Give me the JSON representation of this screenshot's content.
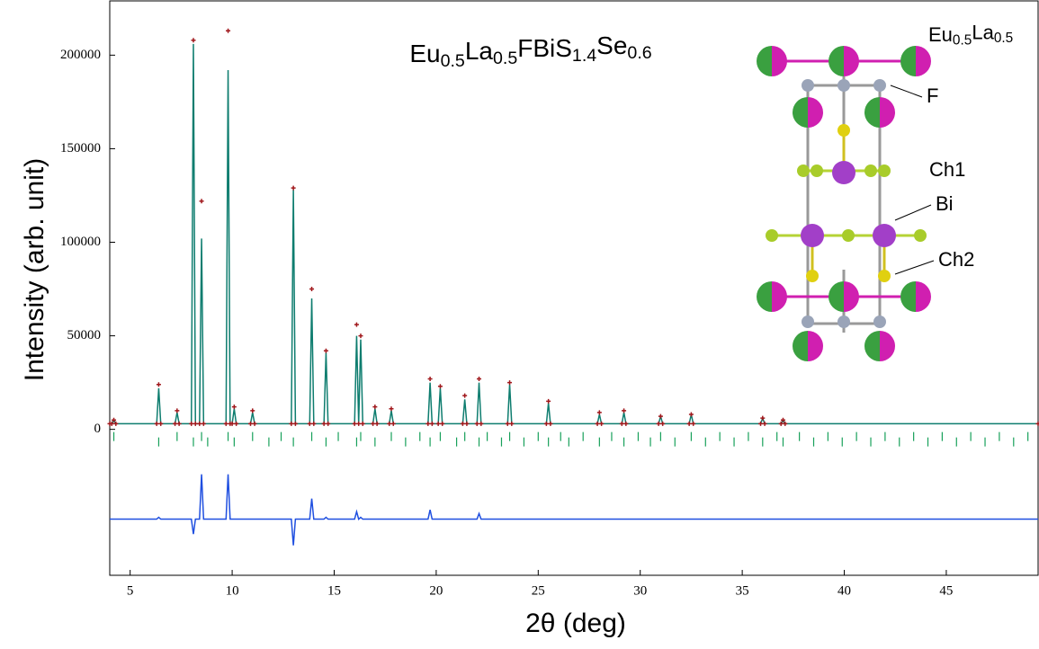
{
  "chart_data": {
    "type": "line",
    "title": "Eu0.5La0.5FBiS1.4Se0.6",
    "x_label": "2θ (deg)",
    "y_label": "Intensity (arb. unit)",
    "xlim": [
      4,
      49.5
    ],
    "ylim": [
      -78000,
      229000
    ],
    "xticks": [
      5,
      10,
      15,
      20,
      25,
      30,
      35,
      40,
      45
    ],
    "yticks": [
      0,
      50000,
      100000,
      150000,
      200000
    ],
    "x": [
      4,
      4.1,
      4.2,
      4.3,
      6.3,
      6.4,
      6.5,
      7.2,
      7.3,
      7.4,
      8.0,
      8.1,
      8.2,
      8.4,
      8.5,
      8.6,
      9.7,
      9.8,
      9.9,
      10.0,
      10.1,
      10.2,
      10.9,
      11.0,
      11.1,
      12.9,
      13.0,
      13.1,
      13.8,
      13.9,
      14.0,
      14.5,
      14.6,
      14.7,
      16.0,
      16.1,
      16.2,
      16.3,
      16.4,
      16.9,
      17.0,
      17.1,
      17.7,
      17.8,
      17.9,
      19.6,
      19.7,
      19.8,
      20.1,
      20.2,
      20.3,
      21.3,
      21.4,
      21.5,
      22.0,
      22.1,
      22.2,
      23.5,
      23.6,
      23.7,
      25.4,
      25.5,
      25.6,
      27.9,
      28.0,
      28.1,
      29.1,
      29.2,
      29.3,
      30.9,
      31.0,
      31.1,
      32.4,
      32.5,
      32.6,
      35.9,
      36.0,
      36.1,
      36.9,
      37.0,
      37.1,
      49.5
    ],
    "series": [
      {
        "style": "line",
        "color": "#0e7d6f",
        "values": [
          3000,
          3000,
          5000,
          3000,
          3000,
          22000,
          3000,
          3000,
          9000,
          3000,
          3000,
          206000,
          3000,
          3000,
          102000,
          3000,
          3000,
          192000,
          3000,
          3000,
          11000,
          3000,
          3000,
          9000,
          3000,
          3000,
          128000,
          3000,
          3000,
          70000,
          3000,
          3000,
          41000,
          3000,
          3000,
          50000,
          3000,
          48000,
          3000,
          3000,
          11000,
          3000,
          3000,
          10000,
          3000,
          3000,
          25000,
          3000,
          3000,
          22000,
          3000,
          3000,
          16000,
          3000,
          3000,
          25000,
          3000,
          3000,
          24000,
          3000,
          3000,
          14000,
          3000,
          3000,
          8000,
          3000,
          3000,
          9000,
          3000,
          3000,
          7000,
          3000,
          3000,
          8000,
          3000,
          3000,
          6000,
          3000,
          3000,
          5000,
          3000,
          3000
        ]
      },
      {
        "style": "scatter",
        "color": "#a0171b",
        "values": [
          3000,
          3000,
          5000,
          3000,
          3000,
          24000,
          3000,
          3000,
          10000,
          3000,
          3000,
          208000,
          3000,
          3000,
          122000,
          3000,
          3000,
          213000,
          3000,
          3000,
          12000,
          3000,
          3000,
          10000,
          3000,
          3000,
          129000,
          3000,
          3000,
          75000,
          3000,
          3000,
          42000,
          3000,
          3000,
          56000,
          3000,
          50000,
          3000,
          3000,
          12000,
          3000,
          3000,
          11000,
          3000,
          3000,
          27000,
          3000,
          3000,
          23000,
          3000,
          3000,
          18000,
          3000,
          3000,
          27000,
          3000,
          3000,
          25000,
          3000,
          3000,
          15000,
          3000,
          3000,
          9000,
          3000,
          3000,
          10000,
          3000,
          3000,
          7000,
          3000,
          3000,
          8000,
          3000,
          3000,
          6000,
          3000,
          3000,
          5000,
          3000,
          3000
        ]
      },
      {
        "style": "line",
        "color": "#1f4fe0",
        "values": [
          -48000,
          -48000,
          -48000,
          -48000,
          -48000,
          -47000,
          -48000,
          -48000,
          -48000,
          -48000,
          -48000,
          -56000,
          -48000,
          -48000,
          -24000,
          -48000,
          -48000,
          -24000,
          -48000,
          -48000,
          -48000,
          -48000,
          -48000,
          -48000,
          -48000,
          -48000,
          -62000,
          -48000,
          -48000,
          -37000,
          -48000,
          -48000,
          -47000,
          -48000,
          -48000,
          -44000,
          -48000,
          -47000,
          -48000,
          -48000,
          -48000,
          -48000,
          -48000,
          -48000,
          -48000,
          -48000,
          -43000,
          -48000,
          -48000,
          -48000,
          -48000,
          -48000,
          -48000,
          -48000,
          -48000,
          -45000,
          -48000,
          -48000,
          -48000,
          -48000,
          -48000,
          -48000,
          -48000,
          -48000,
          -48000,
          -48000,
          -48000,
          -48000,
          -48000,
          -48000,
          -48000,
          -48000,
          -48000,
          -48000,
          -48000,
          -48000,
          -48000,
          -48000,
          -48000,
          -48000,
          -48000,
          -48000
        ]
      }
    ],
    "bragg": {
      "color": "#17a05a",
      "x": [
        4.2,
        6.4,
        7.3,
        8.1,
        8.5,
        8.8,
        9.8,
        10.1,
        11.0,
        11.8,
        12.4,
        13.0,
        13.9,
        14.6,
        15.2,
        16.1,
        16.3,
        17.0,
        17.8,
        18.5,
        19.2,
        19.7,
        20.2,
        21.0,
        21.4,
        22.1,
        22.5,
        23.2,
        23.6,
        24.3,
        25.0,
        25.5,
        26.1,
        26.5,
        27.2,
        28.0,
        28.6,
        29.2,
        29.9,
        30.5,
        31.0,
        31.7,
        32.5,
        33.2,
        33.9,
        34.6,
        35.3,
        36.0,
        36.7,
        37.0,
        37.8,
        38.5,
        39.2,
        39.9,
        40.6,
        41.3,
        42.0,
        42.7,
        43.4,
        44.1,
        44.8,
        45.5,
        46.2,
        46.9,
        47.6,
        48.3,
        49.0
      ]
    },
    "annotations": [
      "Eu0.5La0.5",
      "F",
      "Ch1",
      "Bi",
      "Ch2"
    ]
  }
}
